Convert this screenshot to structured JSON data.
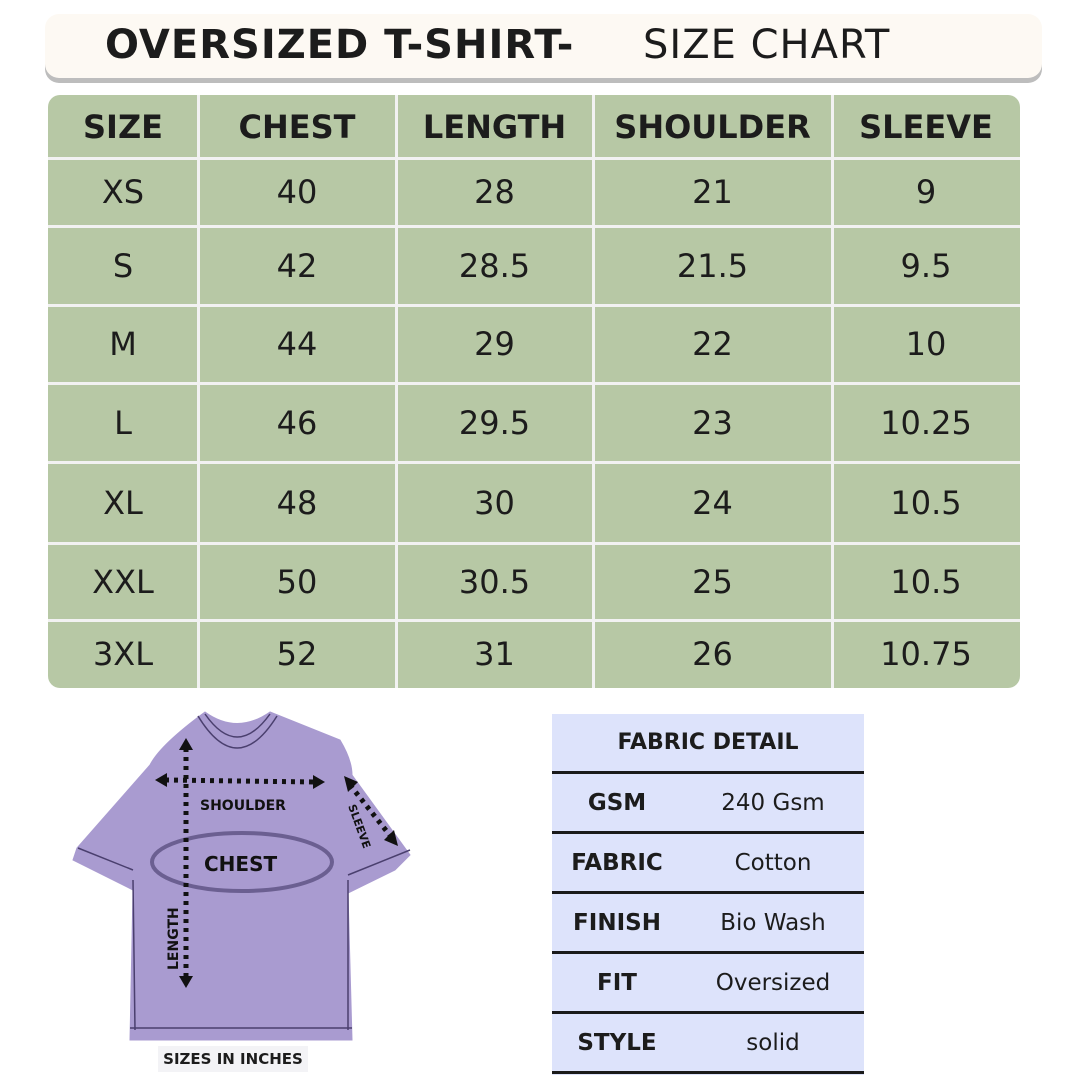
{
  "title": {
    "bold": "OVERSIZED T-SHIRT-",
    "light": "SIZE CHART"
  },
  "size_table": {
    "headers": [
      "SIZE",
      "CHEST",
      "LENGTH",
      "SHOULDER",
      "SLEEVE"
    ],
    "rows": [
      [
        "XS",
        "40",
        "28",
        "21",
        "9"
      ],
      [
        "S",
        "42",
        "28.5",
        "21.5",
        "9.5"
      ],
      [
        "M",
        "44",
        "29",
        "22",
        "10"
      ],
      [
        "L",
        "46",
        "29.5",
        "23",
        "10.25"
      ],
      [
        "XL",
        "48",
        "30",
        "24",
        "10.5"
      ],
      [
        "XXL",
        "50",
        "30.5",
        "25",
        "10.5"
      ],
      [
        "3XL",
        "52",
        "31",
        "26",
        "10.75"
      ]
    ]
  },
  "diagram": {
    "shoulder": "SHOULDER",
    "chest": "CHEST",
    "sleeve": "SLEEVE",
    "length": "LENGTH",
    "units": "SIZES  IN  INCHES"
  },
  "fabric": {
    "title": "FABRIC DETAIL",
    "rows": [
      {
        "key": "GSM",
        "value": "240 Gsm"
      },
      {
        "key": "FABRIC",
        "value": "Cotton"
      },
      {
        "key": "FINISH",
        "value": "Bio Wash"
      },
      {
        "key": "FIT",
        "value": "Oversized"
      },
      {
        "key": "STYLE",
        "value": "solid"
      }
    ]
  },
  "colors": {
    "table_green": "#b7c8a5",
    "shirt_purple": "#a99bd0",
    "fabric_blue": "#dde3fb"
  }
}
